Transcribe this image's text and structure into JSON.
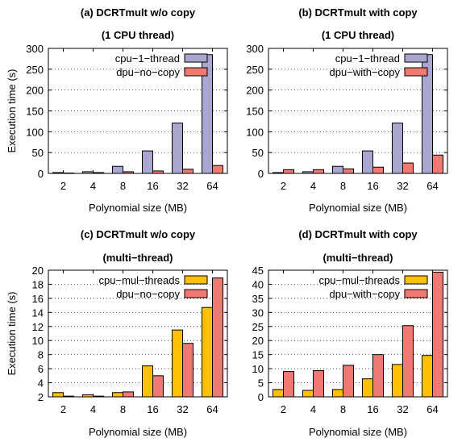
{
  "colors": {
    "cpu_single": "#a9a7cf",
    "dpu": "#f07a72",
    "cpu_multi": "#ffc000"
  },
  "chart_data": [
    {
      "type": "bar",
      "title": "(a) DCRTmult w/o copy",
      "subtitle": "(1 CPU thread)",
      "xlabel": "Polynomial size (MB)",
      "ylabel": "Execution time (s)",
      "categories": [
        "2",
        "4",
        "8",
        "16",
        "32",
        "64"
      ],
      "ylim": [
        0,
        300
      ],
      "yticks": [
        0,
        50,
        100,
        150,
        200,
        250,
        300
      ],
      "grid": true,
      "legend_position": "top-center",
      "series": [
        {
          "name": "cpu−1−thread",
          "color_key": "cpu_single",
          "values": [
            2,
            4,
            17,
            54,
            121,
            285
          ]
        },
        {
          "name": "dpu−no−copy",
          "color_key": "dpu",
          "values": [
            1,
            2,
            4,
            6,
            10,
            19
          ]
        }
      ]
    },
    {
      "type": "bar",
      "title": "(b) DCRTmult with copy",
      "subtitle": "(1 CPU thread)",
      "xlabel": "Polynomial size (MB)",
      "ylabel": "",
      "categories": [
        "2",
        "4",
        "8",
        "16",
        "32",
        "64"
      ],
      "ylim": [
        0,
        300
      ],
      "yticks": [
        0,
        50,
        100,
        150,
        200,
        250,
        300
      ],
      "grid": true,
      "legend_position": "top-center",
      "series": [
        {
          "name": "cpu−1−thread",
          "color_key": "cpu_single",
          "values": [
            2,
            4,
            17,
            54,
            121,
            285
          ]
        },
        {
          "name": "dpu−with−copy",
          "color_key": "dpu",
          "values": [
            9,
            9,
            11,
            15,
            25,
            44
          ]
        }
      ]
    },
    {
      "type": "bar",
      "title": "(c) DCRTmult w/o copy",
      "subtitle": "(multi−thread)",
      "xlabel": "Polynomial size (MB)",
      "ylabel": "Execution time (s)",
      "categories": [
        "2",
        "4",
        "8",
        "16",
        "32",
        "64"
      ],
      "ylim": [
        2,
        20
      ],
      "yticks": [
        2,
        4,
        6,
        8,
        10,
        12,
        14,
        16,
        18,
        20
      ],
      "grid": true,
      "legend_position": "top-center",
      "series": [
        {
          "name": "cpu−mul−threads",
          "color_key": "cpu_multi",
          "values": [
            2.6,
            2.3,
            2.6,
            6.4,
            11.5,
            14.7
          ]
        },
        {
          "name": "dpu−no−copy",
          "color_key": "dpu",
          "values": [
            2.1,
            2.1,
            2.7,
            5.0,
            9.6,
            18.9
          ]
        }
      ]
    },
    {
      "type": "bar",
      "title": "(d) DCRTmult with copy",
      "subtitle": "(multi−thread)",
      "xlabel": "Polynomial size (MB)",
      "ylabel": "",
      "categories": [
        "2",
        "4",
        "8",
        "16",
        "32",
        "64"
      ],
      "ylim": [
        0,
        45
      ],
      "yticks": [
        0,
        5,
        10,
        15,
        20,
        25,
        30,
        35,
        40,
        45
      ],
      "grid": true,
      "legend_position": "top-center",
      "series": [
        {
          "name": "cpu−mul−threads",
          "color_key": "cpu_multi",
          "values": [
            2.6,
            2.3,
            2.6,
            6.4,
            11.5,
            14.7
          ]
        },
        {
          "name": "dpu−with−copy",
          "color_key": "dpu",
          "values": [
            9,
            9.3,
            11.2,
            15.0,
            25.3,
            44.3
          ]
        }
      ]
    }
  ]
}
